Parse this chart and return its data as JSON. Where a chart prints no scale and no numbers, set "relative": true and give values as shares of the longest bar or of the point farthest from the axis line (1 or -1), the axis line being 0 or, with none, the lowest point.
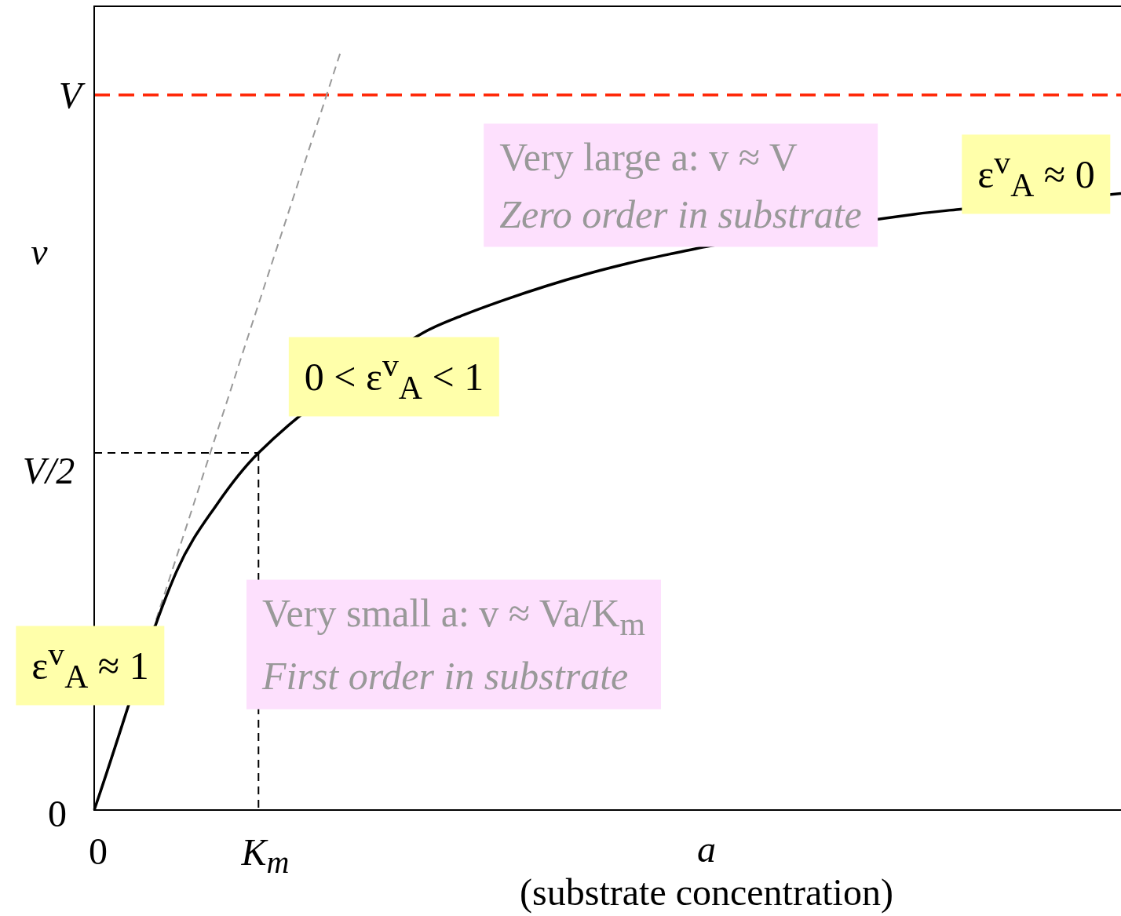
{
  "chart_data": {
    "type": "line",
    "relative": true,
    "xlabel": "a\n(substrate concentration)",
    "ylabel": "v",
    "legend": false,
    "marker": "none",
    "categories": [
      null,
      null,
      null,
      null,
      null,
      null,
      null,
      null,
      null,
      null,
      null,
      null,
      null,
      null,
      null,
      null,
      null,
      null,
      null,
      null,
      null,
      null,
      null,
      null,
      null,
      null
    ],
    "series": [
      {
        "color": "#000000",
        "values": [
          0,
          null,
          0.314,
          0.404,
          0.471,
          null,
          null,
          null,
          0.629,
          0.653,
          0.673,
          0.691,
          0.707,
          0.721,
          0.733,
          0.744,
          null,
          null,
          null,
          null,
          0.786,
          0.792,
          null,
          null,
          null,
          0.813
        ]
      },
      {
        "color": "#999999",
        "line_style": "dashed",
        "values": [
          0,
          null,
          0.333,
          0.5,
          0.667,
          0.833,
          1,
          null,
          null,
          null,
          null,
          null,
          null,
          null,
          null,
          null,
          null,
          null,
          null,
          null,
          null,
          null,
          null,
          null,
          null,
          null
        ]
      },
      {
        "color": "#000000",
        "line_style": "dashed",
        "values": [
          0.471,
          0.471,
          0.471,
          0.471,
          0.471,
          null,
          null,
          null,
          null,
          null,
          null,
          null,
          null,
          null,
          null,
          null,
          null,
          null,
          null,
          null,
          null,
          null,
          null,
          null,
          null,
          null
        ]
      }
    ],
    "ref_lines": [
      {
        "axis": "y",
        "value": 0.943,
        "label": "V",
        "color": "#ff2200",
        "line_style": "dashed"
      }
    ],
    "annotations": [
      "0",
      "V/2",
      "0",
      "K$_{m}$",
      "ε$^{v}$$_{A}$ ≈ 1",
      "0 < ε$^{v}$$_{A}$ < 1",
      "ε$^{v}$$_{A}$ ≈ 0",
      "Very large a: v ≈ V\nZero order in substrate",
      "Very small a: v ≈ Va/K$_{m}$\nFirst order in substrate"
    ]
  }
}
